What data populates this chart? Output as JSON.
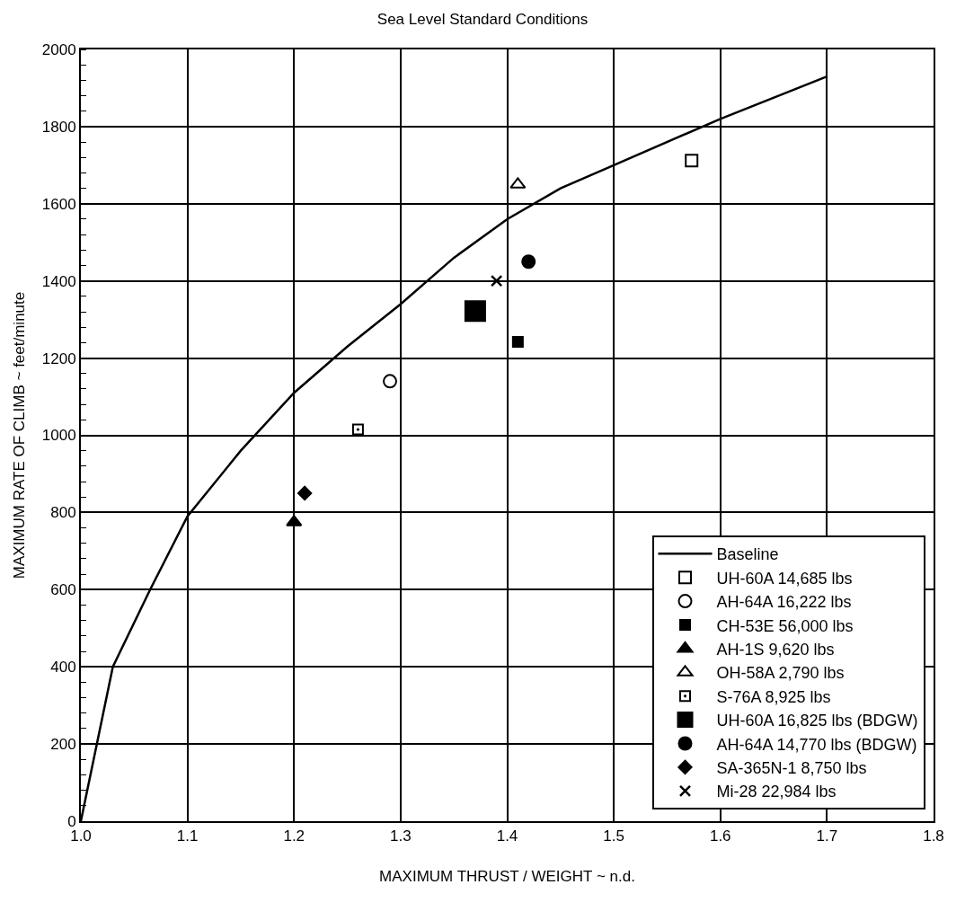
{
  "chart_data": {
    "type": "scatter",
    "title": "Sea Level Standard Conditions",
    "xlabel": "MAXIMUM THRUST / WEIGHT ~ n.d.",
    "ylabel": "MAXIMUM RATE OF CLIMB ~ feet/minute",
    "xlim": [
      1.0,
      1.8
    ],
    "xticks": [
      {
        "value": 1.0,
        "label": "1.0"
      },
      1.1,
      1.2,
      1.3,
      1.4,
      1.5,
      1.6,
      1.7,
      1.8
    ],
    "ylim": [
      0,
      2000
    ],
    "yticks": [
      0,
      200,
      400,
      600,
      800,
      1000,
      1200,
      1400,
      1600,
      1800,
      2000
    ],
    "grid": true,
    "legend": "bottom right",
    "series": [
      {
        "name": "Baseline",
        "type": "line",
        "color": "#000000",
        "marker": "none",
        "line_style": "solid",
        "x": [
          1.0,
          1.03,
          1.065,
          1.1,
          1.15,
          1.2,
          1.25,
          1.3,
          1.35,
          1.4,
          1.45,
          1.5,
          1.6,
          1.7
        ],
        "values": [
          0,
          400,
          600,
          790,
          960,
          1110,
          1230,
          1340,
          1460,
          1560,
          1640,
          1700,
          1820,
          1930
        ]
      },
      {
        "name": "UH-60A 14,685 lbs",
        "color": "#000000",
        "marker": "square-open",
        "x": [
          1.573
        ],
        "values": [
          1712
        ]
      },
      {
        "name": "AH-64A 16,222 lbs",
        "color": "#000000",
        "marker": "circle-open",
        "x": [
          1.29
        ],
        "values": [
          1140
        ]
      },
      {
        "name": "CH-53E 56,000 lbs",
        "color": "#000000",
        "marker": "square",
        "x": [
          1.41
        ],
        "values": [
          1242
        ]
      },
      {
        "name": "AH-1S 9,620 lbs",
        "color": "#000000",
        "marker": "triangle",
        "x": [
          1.2
        ],
        "values": [
          775
        ]
      },
      {
        "name": "OH-58A 2,790 lbs",
        "color": "#000000",
        "marker": "triangle-open",
        "x": [
          1.41
        ],
        "values": [
          1650
        ]
      },
      {
        "name": "S-76A 8,925 lbs",
        "color": "#000000",
        "marker": "square-open-dot",
        "x": [
          1.26
        ],
        "values": [
          1015
        ]
      },
      {
        "name": "UH-60A 16,825 lbs (BDGW)",
        "color": "#000000",
        "marker": "square-large",
        "x": [
          1.37
        ],
        "values": [
          1322
        ]
      },
      {
        "name": "AH-64A 14,770 lbs (BDGW)",
        "color": "#000000",
        "marker": "circle",
        "x": [
          1.42
        ],
        "values": [
          1450
        ]
      },
      {
        "name": "SA-365N-1 8,750 lbs",
        "color": "#000000",
        "marker": "diamond",
        "x": [
          1.21
        ],
        "values": [
          850
        ]
      },
      {
        "name": "Mi-28 22,984 lbs",
        "color": "#000000",
        "marker": "cross",
        "x": [
          1.39
        ],
        "values": [
          1400
        ]
      }
    ]
  }
}
